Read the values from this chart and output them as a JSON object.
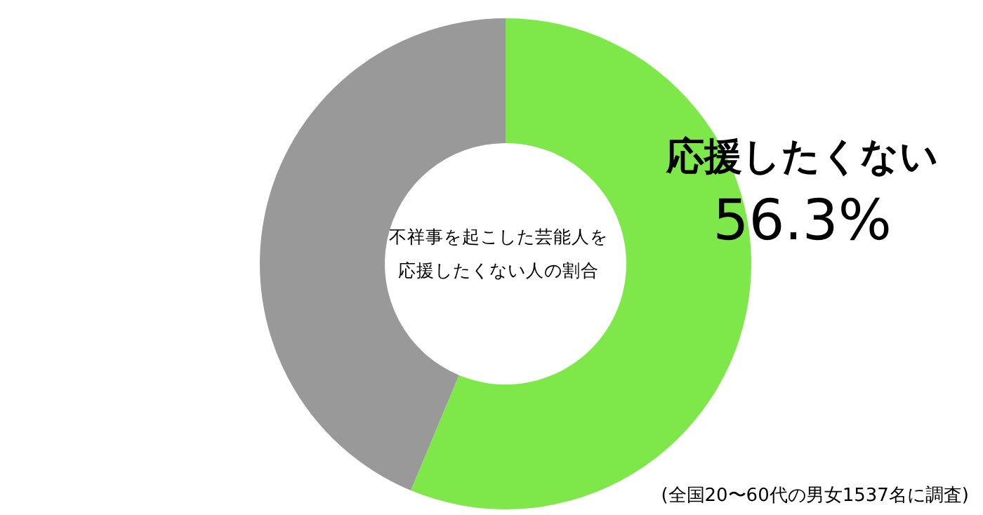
{
  "chart_data": {
    "type": "donut",
    "title": "不祥事を起こした芸能人を応援したくない人の割合",
    "categories": [
      "応援したくない",
      null
    ],
    "values": [
      56.3,
      43.7
    ],
    "colors": [
      "#7ee84a",
      "#999999"
    ],
    "value_labels": [
      "56.3%",
      null
    ],
    "annotations": [
      "(全国20〜60代の男女1537名に調査)"
    ]
  }
}
